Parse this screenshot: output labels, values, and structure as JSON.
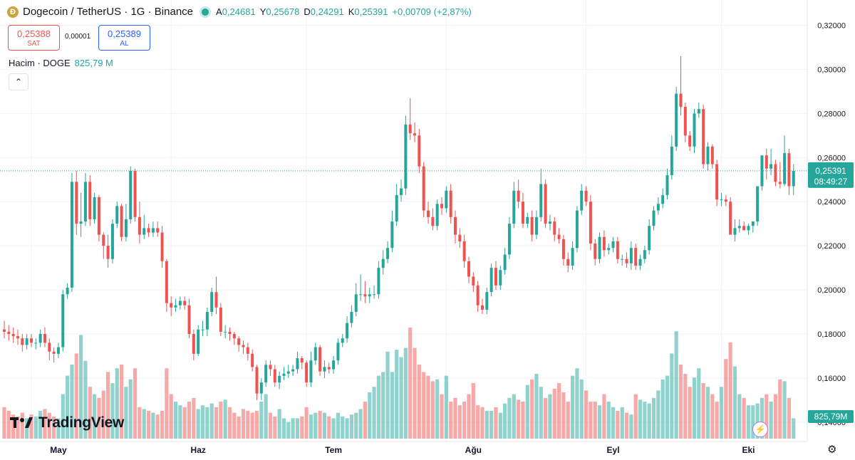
{
  "header": {
    "coin_icon_letter": "Ð",
    "symbol": "Dogecoin / TetherUS · 1G · Binance",
    "ohlc": [
      {
        "k": "A",
        "v": "0,24681"
      },
      {
        "k": "Y",
        "v": "0,25678"
      },
      {
        "k": "D",
        "v": "0,24291"
      },
      {
        "k": "K",
        "v": "0,25391"
      },
      {
        "k": "",
        "v": "+0,00709 (+2,87%)"
      }
    ]
  },
  "trade": {
    "sell_price": "0,25388",
    "sell_label": "SAT",
    "spread": "0,00001",
    "buy_price": "0,25389",
    "buy_label": "AL"
  },
  "volume_legend": {
    "label": "Hacim · DOGE",
    "value": "825,79 M"
  },
  "collapse_icon": "⌃",
  "logo_text": "TradingView",
  "bolt_icon": "⚡",
  "settings_icon": "⚙",
  "chart_data": {
    "type": "candlestick",
    "title": "",
    "xlabel": "",
    "ylabel": "",
    "ylim": [
      0.128,
      0.325
    ],
    "y_ticks": [
      "0,14000",
      "0,16000",
      "0,18000",
      "0,20000",
      "0,22000",
      "0,24000",
      "0,26000",
      "0,28000",
      "0,30000",
      "0,32000"
    ],
    "y_tick_values": [
      0.14,
      0.16,
      0.18,
      0.2,
      0.22,
      0.24,
      0.26,
      0.28,
      0.3,
      0.32
    ],
    "x_ticks": [
      {
        "label": "May",
        "index": 6
      },
      {
        "label": "Haz",
        "index": 37
      },
      {
        "label": "Tem",
        "index": 67
      },
      {
        "label": "Ağu",
        "index": 98
      },
      {
        "label": "Eyl",
        "index": 129
      },
      {
        "label": "Eki",
        "index": 159
      }
    ],
    "grid": true,
    "last_price_label": "0,25391",
    "countdown_label": "08:49:27",
    "volume_label": "825,79M",
    "up_color": "#26a69a",
    "down_color": "#ef5350",
    "candles": {
      "open": [
        0.182,
        0.181,
        0.18,
        0.179,
        0.178,
        0.175,
        0.178,
        0.176,
        0.176,
        0.18,
        0.176,
        0.172,
        0.171,
        0.174,
        0.198,
        0.201,
        0.249,
        0.23,
        0.231,
        0.249,
        0.232,
        0.242,
        0.225,
        0.22,
        0.214,
        0.23,
        0.238,
        0.224,
        0.232,
        0.254,
        0.233,
        0.225,
        0.228,
        0.226,
        0.228,
        0.226,
        0.213,
        0.194,
        0.192,
        0.193,
        0.195,
        0.193,
        0.18,
        0.171,
        0.182,
        0.182,
        0.19,
        0.199,
        0.192,
        0.181,
        0.181,
        0.18,
        0.178,
        0.175,
        0.174,
        0.171,
        0.165,
        0.153,
        0.158,
        0.166,
        0.164,
        0.158,
        0.161,
        0.162,
        0.163,
        0.164,
        0.169,
        0.167,
        0.158,
        0.168,
        0.174,
        0.163,
        0.165,
        0.164,
        0.168,
        0.176,
        0.178,
        0.185,
        0.19,
        0.198,
        0.198,
        0.197,
        0.198,
        0.198,
        0.21,
        0.214,
        0.219,
        0.231,
        0.243,
        0.246,
        0.275,
        0.271,
        0.27,
        0.256,
        0.236,
        0.233,
        0.229,
        0.239,
        0.237,
        0.245,
        0.233,
        0.225,
        0.222,
        0.213,
        0.206,
        0.202,
        0.193,
        0.191,
        0.199,
        0.21,
        0.202,
        0.209,
        0.216,
        0.23,
        0.245,
        0.24,
        0.23,
        0.233,
        0.225,
        0.233,
        0.248,
        0.23,
        0.231,
        0.225,
        0.223,
        0.214,
        0.211,
        0.219,
        0.236,
        0.245,
        0.24,
        0.221,
        0.214,
        0.224,
        0.218,
        0.219,
        0.222,
        0.214,
        0.214,
        0.212,
        0.219,
        0.211,
        0.214,
        0.218,
        0.229,
        0.236,
        0.239,
        0.243,
        0.252,
        0.265,
        0.289,
        0.283,
        0.27,
        0.265,
        0.28,
        0.282,
        0.257,
        0.265,
        0.257,
        0.241,
        0.241,
        0.24,
        0.225,
        0.228,
        0.229,
        0.227,
        0.229,
        0.231,
        0.247,
        0.261,
        0.255,
        0.257,
        0.249,
        0.248,
        0.262,
        0.247
      ],
      "close": [
        0.181,
        0.18,
        0.179,
        0.178,
        0.175,
        0.178,
        0.176,
        0.176,
        0.18,
        0.176,
        0.172,
        0.171,
        0.174,
        0.198,
        0.201,
        0.249,
        0.23,
        0.231,
        0.249,
        0.232,
        0.242,
        0.225,
        0.22,
        0.214,
        0.23,
        0.238,
        0.224,
        0.232,
        0.254,
        0.233,
        0.225,
        0.228,
        0.226,
        0.228,
        0.226,
        0.213,
        0.194,
        0.192,
        0.193,
        0.195,
        0.193,
        0.18,
        0.171,
        0.182,
        0.182,
        0.19,
        0.199,
        0.192,
        0.181,
        0.181,
        0.18,
        0.178,
        0.175,
        0.174,
        0.171,
        0.165,
        0.153,
        0.158,
        0.166,
        0.164,
        0.158,
        0.161,
        0.162,
        0.163,
        0.164,
        0.169,
        0.167,
        0.158,
        0.168,
        0.174,
        0.163,
        0.165,
        0.164,
        0.168,
        0.176,
        0.178,
        0.185,
        0.19,
        0.198,
        0.198,
        0.197,
        0.198,
        0.198,
        0.21,
        0.214,
        0.219,
        0.231,
        0.243,
        0.246,
        0.275,
        0.271,
        0.27,
        0.256,
        0.236,
        0.233,
        0.229,
        0.239,
        0.237,
        0.245,
        0.233,
        0.225,
        0.222,
        0.213,
        0.206,
        0.202,
        0.193,
        0.191,
        0.199,
        0.21,
        0.202,
        0.209,
        0.216,
        0.23,
        0.245,
        0.24,
        0.23,
        0.233,
        0.225,
        0.233,
        0.248,
        0.23,
        0.231,
        0.225,
        0.223,
        0.214,
        0.211,
        0.219,
        0.236,
        0.245,
        0.24,
        0.221,
        0.214,
        0.224,
        0.218,
        0.219,
        0.222,
        0.214,
        0.214,
        0.212,
        0.219,
        0.211,
        0.214,
        0.218,
        0.229,
        0.236,
        0.239,
        0.243,
        0.252,
        0.265,
        0.289,
        0.283,
        0.27,
        0.265,
        0.28,
        0.282,
        0.257,
        0.265,
        0.257,
        0.241,
        0.241,
        0.24,
        0.225,
        0.228,
        0.229,
        0.227,
        0.229,
        0.231,
        0.247,
        0.261,
        0.255,
        0.257,
        0.249,
        0.248,
        0.262,
        0.247,
        0.254
      ],
      "high": [
        0.186,
        0.184,
        0.183,
        0.182,
        0.18,
        0.18,
        0.18,
        0.178,
        0.182,
        0.183,
        0.178,
        0.174,
        0.176,
        0.2,
        0.203,
        0.253,
        0.254,
        0.244,
        0.253,
        0.252,
        0.244,
        0.243,
        0.226,
        0.225,
        0.232,
        0.24,
        0.239,
        0.239,
        0.256,
        0.255,
        0.24,
        0.234,
        0.23,
        0.231,
        0.231,
        0.229,
        0.214,
        0.197,
        0.196,
        0.197,
        0.197,
        0.196,
        0.182,
        0.184,
        0.186,
        0.192,
        0.201,
        0.206,
        0.194,
        0.184,
        0.183,
        0.181,
        0.179,
        0.177,
        0.176,
        0.173,
        0.166,
        0.16,
        0.168,
        0.168,
        0.166,
        0.163,
        0.165,
        0.166,
        0.166,
        0.172,
        0.17,
        0.168,
        0.172,
        0.176,
        0.175,
        0.168,
        0.167,
        0.17,
        0.178,
        0.18,
        0.188,
        0.193,
        0.203,
        0.207,
        0.204,
        0.201,
        0.202,
        0.213,
        0.218,
        0.222,
        0.236,
        0.248,
        0.25,
        0.279,
        0.287,
        0.276,
        0.273,
        0.258,
        0.24,
        0.237,
        0.241,
        0.242,
        0.247,
        0.248,
        0.236,
        0.228,
        0.225,
        0.215,
        0.208,
        0.204,
        0.196,
        0.201,
        0.212,
        0.213,
        0.211,
        0.219,
        0.233,
        0.249,
        0.25,
        0.244,
        0.235,
        0.236,
        0.236,
        0.255,
        0.25,
        0.234,
        0.233,
        0.228,
        0.225,
        0.217,
        0.222,
        0.238,
        0.248,
        0.247,
        0.243,
        0.223,
        0.226,
        0.227,
        0.221,
        0.224,
        0.224,
        0.216,
        0.217,
        0.222,
        0.221,
        0.216,
        0.22,
        0.232,
        0.238,
        0.242,
        0.246,
        0.255,
        0.27,
        0.292,
        0.306,
        0.285,
        0.272,
        0.282,
        0.285,
        0.284,
        0.267,
        0.266,
        0.259,
        0.244,
        0.243,
        0.242,
        0.232,
        0.232,
        0.231,
        0.23,
        0.231,
        0.235,
        0.25,
        0.264,
        0.264,
        0.259,
        0.258,
        0.27,
        0.264,
        0.257
      ],
      "low": [
        0.178,
        0.177,
        0.176,
        0.175,
        0.172,
        0.173,
        0.174,
        0.173,
        0.174,
        0.174,
        0.168,
        0.167,
        0.169,
        0.172,
        0.196,
        0.199,
        0.225,
        0.224,
        0.229,
        0.229,
        0.23,
        0.222,
        0.214,
        0.21,
        0.212,
        0.228,
        0.222,
        0.222,
        0.23,
        0.231,
        0.221,
        0.223,
        0.224,
        0.224,
        0.224,
        0.21,
        0.19,
        0.188,
        0.19,
        0.191,
        0.191,
        0.178,
        0.168,
        0.17,
        0.179,
        0.179,
        0.188,
        0.189,
        0.179,
        0.178,
        0.177,
        0.175,
        0.172,
        0.171,
        0.168,
        0.163,
        0.15,
        0.15,
        0.156,
        0.161,
        0.156,
        0.155,
        0.159,
        0.16,
        0.161,
        0.162,
        0.164,
        0.156,
        0.156,
        0.166,
        0.161,
        0.16,
        0.162,
        0.162,
        0.166,
        0.174,
        0.176,
        0.183,
        0.188,
        0.195,
        0.194,
        0.194,
        0.196,
        0.196,
        0.207,
        0.212,
        0.217,
        0.229,
        0.24,
        0.243,
        0.268,
        0.267,
        0.253,
        0.233,
        0.23,
        0.227,
        0.227,
        0.234,
        0.235,
        0.23,
        0.221,
        0.219,
        0.21,
        0.203,
        0.199,
        0.19,
        0.189,
        0.189,
        0.197,
        0.2,
        0.2,
        0.207,
        0.214,
        0.228,
        0.237,
        0.228,
        0.228,
        0.222,
        0.223,
        0.231,
        0.228,
        0.227,
        0.222,
        0.221,
        0.211,
        0.208,
        0.209,
        0.217,
        0.234,
        0.238,
        0.218,
        0.211,
        0.212,
        0.215,
        0.216,
        0.217,
        0.212,
        0.211,
        0.21,
        0.209,
        0.209,
        0.209,
        0.212,
        0.216,
        0.227,
        0.234,
        0.237,
        0.241,
        0.25,
        0.263,
        0.279,
        0.267,
        0.263,
        0.262,
        0.278,
        0.255,
        0.254,
        0.255,
        0.238,
        0.238,
        0.238,
        0.23,
        0.222,
        0.226,
        0.227,
        0.225,
        0.226,
        0.229,
        0.245,
        0.25,
        0.252,
        0.247,
        0.246,
        0.247,
        0.243,
        0.243
      ],
      "volume": [
        0.85,
        0.75,
        0.65,
        0.6,
        0.7,
        0.55,
        0.65,
        0.6,
        0.75,
        0.8,
        0.7,
        0.6,
        0.55,
        1.2,
        1.7,
        2.0,
        2.3,
        2.8,
        2.1,
        1.4,
        1.2,
        1.1,
        1.3,
        1.8,
        1.5,
        1.9,
        2.0,
        1.4,
        1.6,
        1.9,
        0.85,
        0.8,
        0.75,
        0.7,
        0.65,
        0.75,
        1.9,
        1.2,
        1.0,
        0.9,
        0.85,
        1.0,
        1.1,
        0.8,
        0.9,
        0.85,
        0.95,
        0.85,
        1.0,
        1.05,
        0.85,
        0.7,
        0.6,
        0.8,
        0.75,
        0.7,
        0.75,
        1.0,
        1.2,
        0.7,
        0.6,
        0.8,
        0.55,
        0.45,
        0.55,
        0.55,
        0.6,
        0.85,
        0.65,
        0.7,
        0.75,
        0.7,
        0.6,
        0.55,
        0.7,
        0.6,
        0.55,
        0.65,
        0.7,
        0.8,
        1.0,
        1.25,
        1.4,
        1.7,
        1.8,
        2.35,
        1.8,
        2.4,
        2.2,
        2.45,
        3.0,
        2.45,
        2.0,
        1.8,
        1.7,
        1.55,
        1.6,
        1.2,
        1.7,
        1.0,
        1.1,
        0.9,
        1.0,
        1.2,
        1.5,
        0.9,
        0.85,
        0.75,
        0.75,
        0.85,
        0.7,
        0.95,
        1.1,
        1.2,
        1.05,
        1.0,
        1.45,
        1.6,
        1.75,
        1.4,
        1.1,
        1.2,
        1.35,
        1.5,
        1.25,
        1.0,
        1.7,
        1.9,
        1.6,
        1.3,
        1.0,
        1.0,
        0.9,
        1.2,
        1.0,
        0.85,
        0.75,
        0.85,
        0.7,
        0.65,
        1.2,
        1.05,
        1.0,
        0.95,
        1.1,
        1.3,
        1.6,
        1.7,
        2.3,
        2.9,
        2.0,
        1.75,
        1.4,
        1.65,
        1.9,
        1.5,
        1.4,
        1.2,
        1.0,
        1.4,
        2.15,
        2.6,
        1.95,
        1.2,
        1.1,
        0.9,
        0.9,
        0.95,
        1.1,
        1.2,
        1.0,
        1.2,
        1.6,
        1.55,
        1.1,
        0.55
      ]
    }
  }
}
